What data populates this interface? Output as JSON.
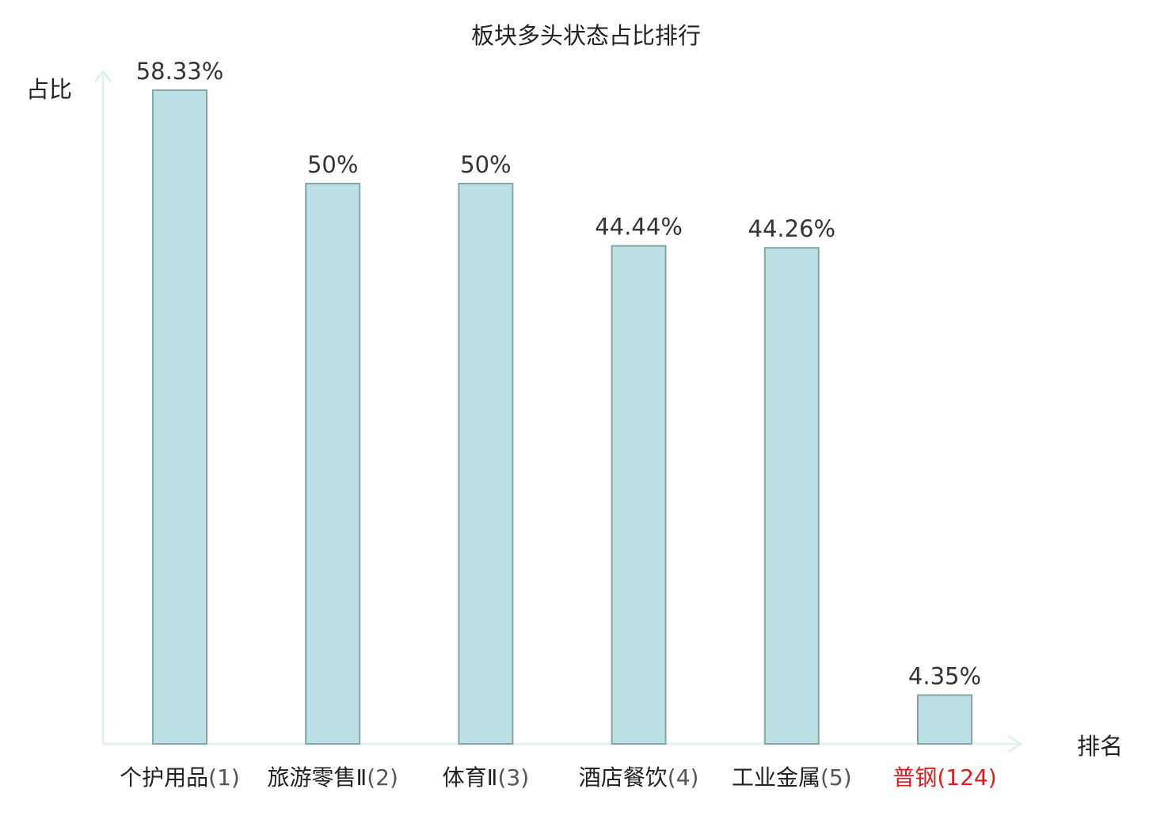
{
  "chart_data": {
    "type": "bar",
    "title": "板块多头状态占比排行",
    "ylabel": "占比",
    "xlabel": "排名",
    "categories": [
      "个护用品",
      "旅游零售Ⅱ",
      "体育Ⅱ",
      "酒店餐饮",
      "工业金属",
      "普钢"
    ],
    "ranks": [
      "(1)",
      "(2)",
      "(3)",
      "(4)",
      "(5)",
      "(124)"
    ],
    "values": [
      58.33,
      50,
      50,
      44.44,
      44.26,
      4.35
    ],
    "value_labels": [
      "58.33%",
      "50%",
      "50%",
      "44.44%",
      "44.26%",
      "4.35%"
    ],
    "highlight_index": 5,
    "ylim": [
      0,
      60
    ],
    "grid": false,
    "colors": {
      "bar_fill": "#bce0e3",
      "bar_stroke": "#86a6aa",
      "axis": "#dff2ef",
      "highlight": "#e01b1b"
    }
  }
}
